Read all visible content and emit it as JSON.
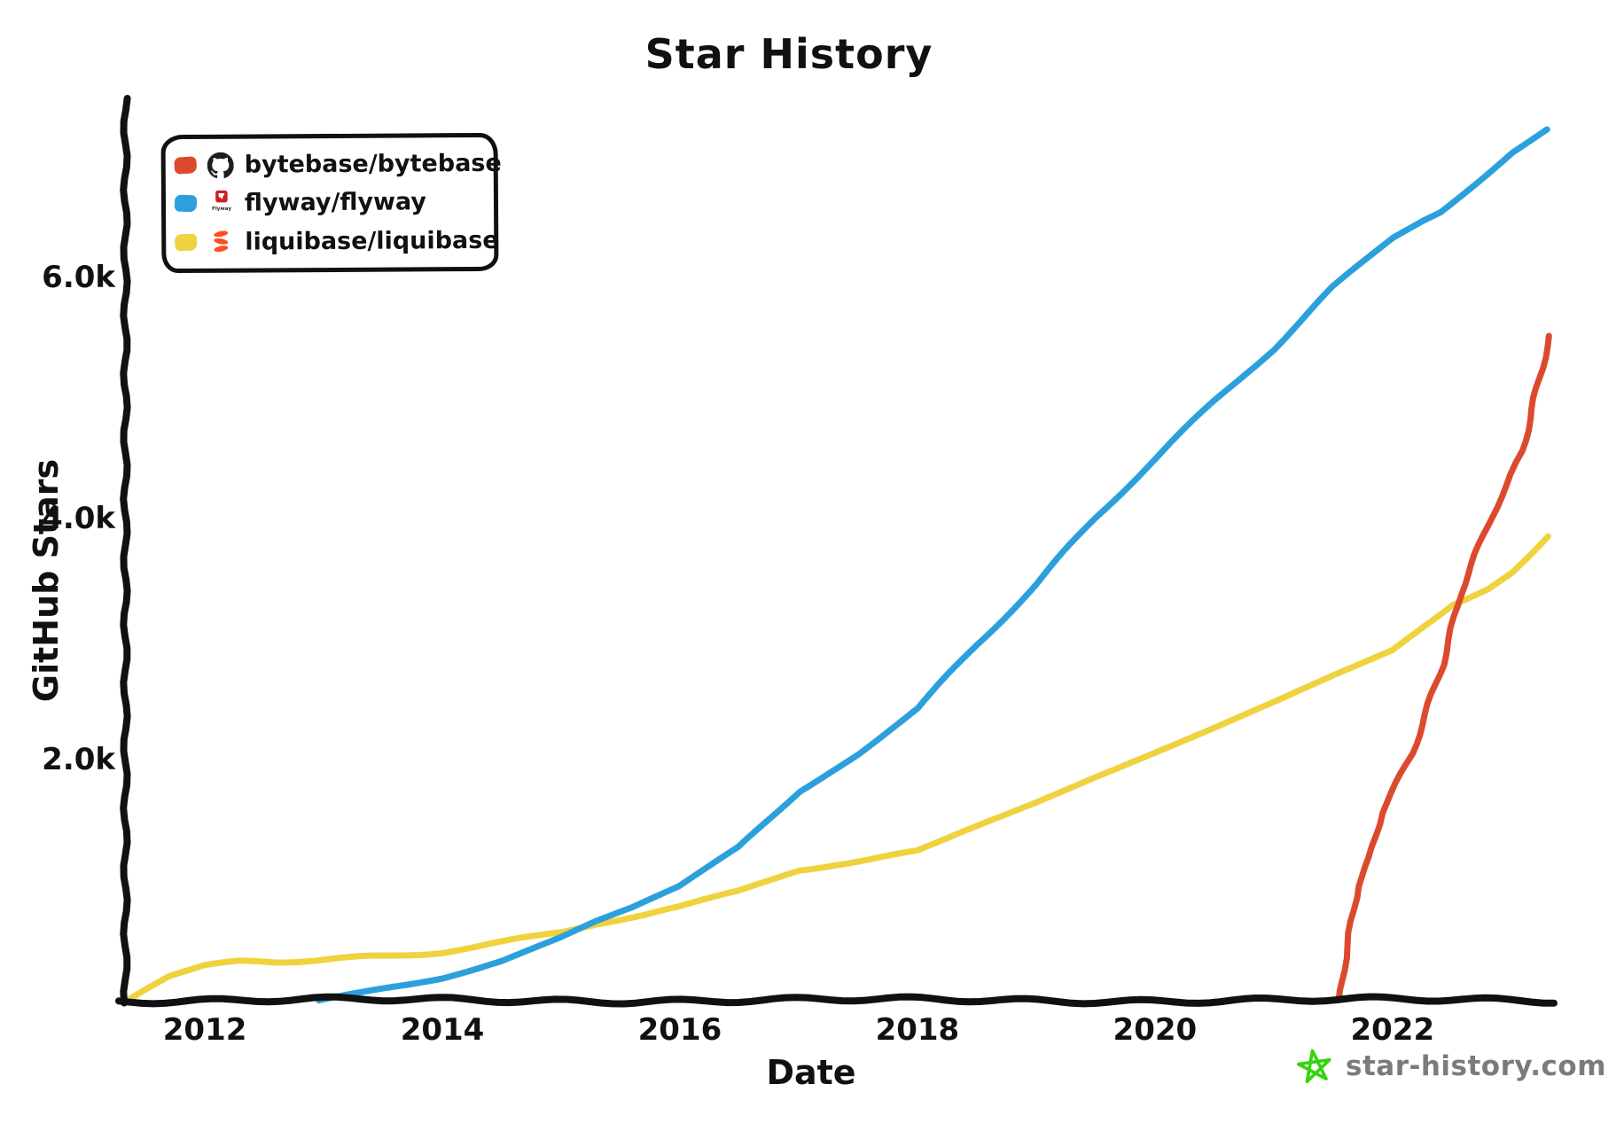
{
  "title": "Star History",
  "watermark": {
    "text": "star-history.com",
    "star_color": "#35d40f",
    "text_color": "#7b7b7b"
  },
  "colors": {
    "background": "#ffffff",
    "axis": "#111111",
    "text": "#111111",
    "bytebase_red": "#dc4a2e",
    "flyway_blue": "#2ca0dc",
    "liquibase_yellow": "#f0d23e",
    "octocat_black": "#1b1f23",
    "flyway_logo_red": "#cc2127",
    "liquibase_logo_orange": "#ff4e1f"
  },
  "chart_data": {
    "type": "line",
    "title": "Star History",
    "xlabel": "Date",
    "ylabel": "GitHub Stars",
    "grid": false,
    "legend_position": "top-left",
    "xlim": [
      2011.32,
      2023.36
    ],
    "ylim": [
      0,
      7470
    ],
    "x_ticks": [
      "2012",
      "2014",
      "2016",
      "2018",
      "2020",
      "2022"
    ],
    "x_tick_years": [
      2012,
      2014,
      2016,
      2018,
      2020,
      2022
    ],
    "y_ticks": [
      {
        "value": 2000,
        "label": "2.0k"
      },
      {
        "value": 4000,
        "label": "4.0k"
      },
      {
        "value": 6000,
        "label": "6.0k"
      }
    ],
    "series": [
      {
        "name": "bytebase/bytebase",
        "color": "#dc4a2e",
        "icon": "github-octocat",
        "points": [
          [
            2021.55,
            0
          ],
          [
            2021.58,
            250
          ],
          [
            2021.63,
            560
          ],
          [
            2021.7,
            950
          ],
          [
            2021.8,
            1180
          ],
          [
            2021.9,
            1560
          ],
          [
            2022.16,
            2050
          ],
          [
            2022.3,
            2460
          ],
          [
            2022.42,
            2790
          ],
          [
            2022.57,
            3380
          ],
          [
            2022.7,
            3700
          ],
          [
            2022.83,
            4010
          ],
          [
            2022.96,
            4260
          ],
          [
            2023.1,
            4560
          ],
          [
            2023.2,
            4990
          ],
          [
            2023.33,
            5510
          ]
        ]
      },
      {
        "name": "flyway/flyway",
        "color": "#2ca0dc",
        "icon": "flyway-logo",
        "points": [
          [
            2012.96,
            0
          ],
          [
            2013.3,
            60
          ],
          [
            2013.6,
            120
          ],
          [
            2014,
            200
          ],
          [
            2014.5,
            330
          ],
          [
            2015,
            510
          ],
          [
            2015.3,
            640
          ],
          [
            2015.6,
            750
          ],
          [
            2016,
            930
          ],
          [
            2016.5,
            1260
          ],
          [
            2017,
            1740
          ],
          [
            2017.5,
            2060
          ],
          [
            2018,
            2430
          ],
          [
            2018.5,
            2960
          ],
          [
            2019,
            3450
          ],
          [
            2019.5,
            4000
          ],
          [
            2020,
            4480
          ],
          [
            2020.5,
            4960
          ],
          [
            2021,
            5410
          ],
          [
            2021.5,
            5920
          ],
          [
            2022,
            6340
          ],
          [
            2022.25,
            6480
          ],
          [
            2022.4,
            6550
          ],
          [
            2023,
            7040
          ],
          [
            2023.3,
            7230
          ]
        ]
      },
      {
        "name": "liquibase/liquibase",
        "color": "#f0d23e",
        "icon": "liquibase-logo",
        "points": [
          [
            2011.35,
            0
          ],
          [
            2011.5,
            90
          ],
          [
            2011.7,
            200
          ],
          [
            2012,
            280
          ],
          [
            2012.3,
            310
          ],
          [
            2012.6,
            315
          ],
          [
            2013,
            340
          ],
          [
            2013.5,
            370
          ],
          [
            2014,
            410
          ],
          [
            2014.3,
            450
          ],
          [
            2014.7,
            520
          ],
          [
            2015,
            570
          ],
          [
            2015.3,
            640
          ],
          [
            2015.7,
            700
          ],
          [
            2016,
            760
          ],
          [
            2016.5,
            900
          ],
          [
            2017,
            1080
          ],
          [
            2017.3,
            1130
          ],
          [
            2017.6,
            1170
          ],
          [
            2018,
            1240
          ],
          [
            2018.5,
            1450
          ],
          [
            2019,
            1650
          ],
          [
            2019.5,
            1860
          ],
          [
            2020,
            2060
          ],
          [
            2020.5,
            2260
          ],
          [
            2021,
            2470
          ],
          [
            2021.5,
            2690
          ],
          [
            2022,
            2900
          ],
          [
            2022.5,
            3290
          ],
          [
            2022.8,
            3420
          ],
          [
            2023,
            3560
          ],
          [
            2023.3,
            3860
          ]
        ]
      }
    ]
  }
}
